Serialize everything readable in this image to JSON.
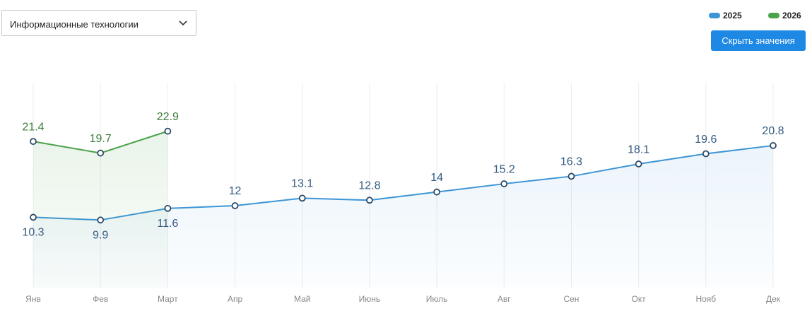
{
  "dropdown": {
    "label": "Информационные технологии"
  },
  "button": {
    "label": "Скрыть значения"
  },
  "chart_data": {
    "type": "line",
    "categories": [
      "Янв",
      "Фев",
      "Март",
      "Апр",
      "Май",
      "Июнь",
      "Июль",
      "Авг",
      "Сен",
      "Окт",
      "Нояб",
      "Дек"
    ],
    "series": [
      {
        "name": "2025",
        "color": "#3d95d6",
        "values": [
          10.3,
          9.9,
          11.6,
          12,
          13.1,
          12.8,
          14,
          15.2,
          16.3,
          18.1,
          19.6,
          20.8
        ]
      },
      {
        "name": "2026",
        "color": "#4aa34a",
        "values": [
          21.4,
          19.7,
          22.9,
          null,
          null,
          null,
          null,
          null,
          null,
          null,
          null,
          null
        ]
      }
    ],
    "ylim": [
      0,
      30
    ],
    "grid": true,
    "legend": "top-right"
  }
}
